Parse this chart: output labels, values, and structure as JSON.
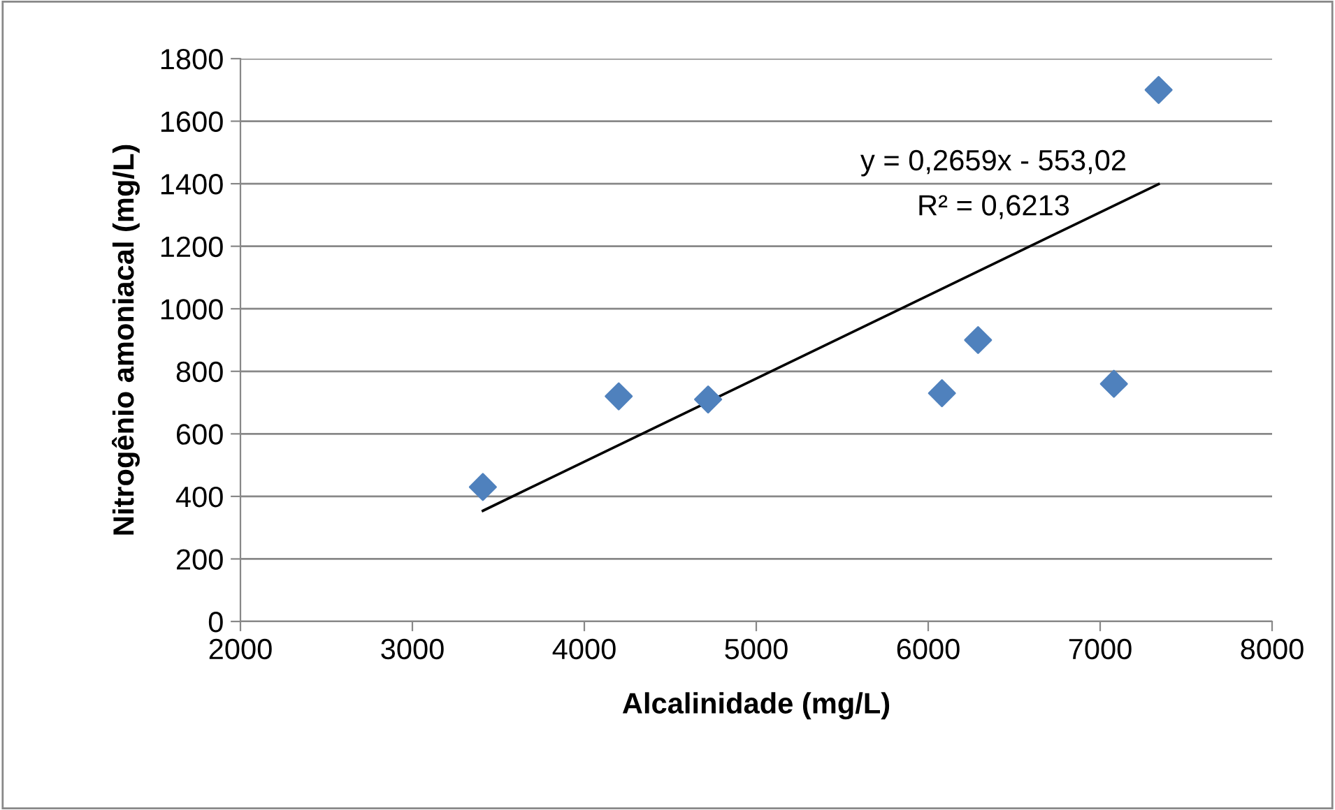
{
  "chart_data": {
    "type": "scatter",
    "xlabel": "Alcalinidade (mg/L)",
    "ylabel": "Nitrogênio amoniacal (mg/L)",
    "xlim": [
      2000,
      8000
    ],
    "xticks": [
      2000,
      3000,
      4000,
      5000,
      6000,
      7000,
      8000
    ],
    "ylim": [
      0,
      1800
    ],
    "yticks": [
      0,
      200,
      400,
      600,
      800,
      1000,
      1200,
      1400,
      1600,
      1800
    ],
    "grid": "y",
    "legend": false,
    "series": [
      {
        "color": "#4f81bd",
        "marker": "diamond",
        "x": [
          3410,
          4200,
          4720,
          6080,
          6290,
          7080,
          7340
        ],
        "values": [
          430,
          720,
          710,
          730,
          900,
          760,
          1700
        ]
      },
      {
        "type": "line",
        "marker": "none",
        "color": "#000000",
        "x": [
          3410,
          7340
        ],
        "values": [
          354,
          1399
        ]
      }
    ],
    "annotations": [
      "y = 0,2659x - 553,02",
      "R² = 0,6213"
    ]
  }
}
